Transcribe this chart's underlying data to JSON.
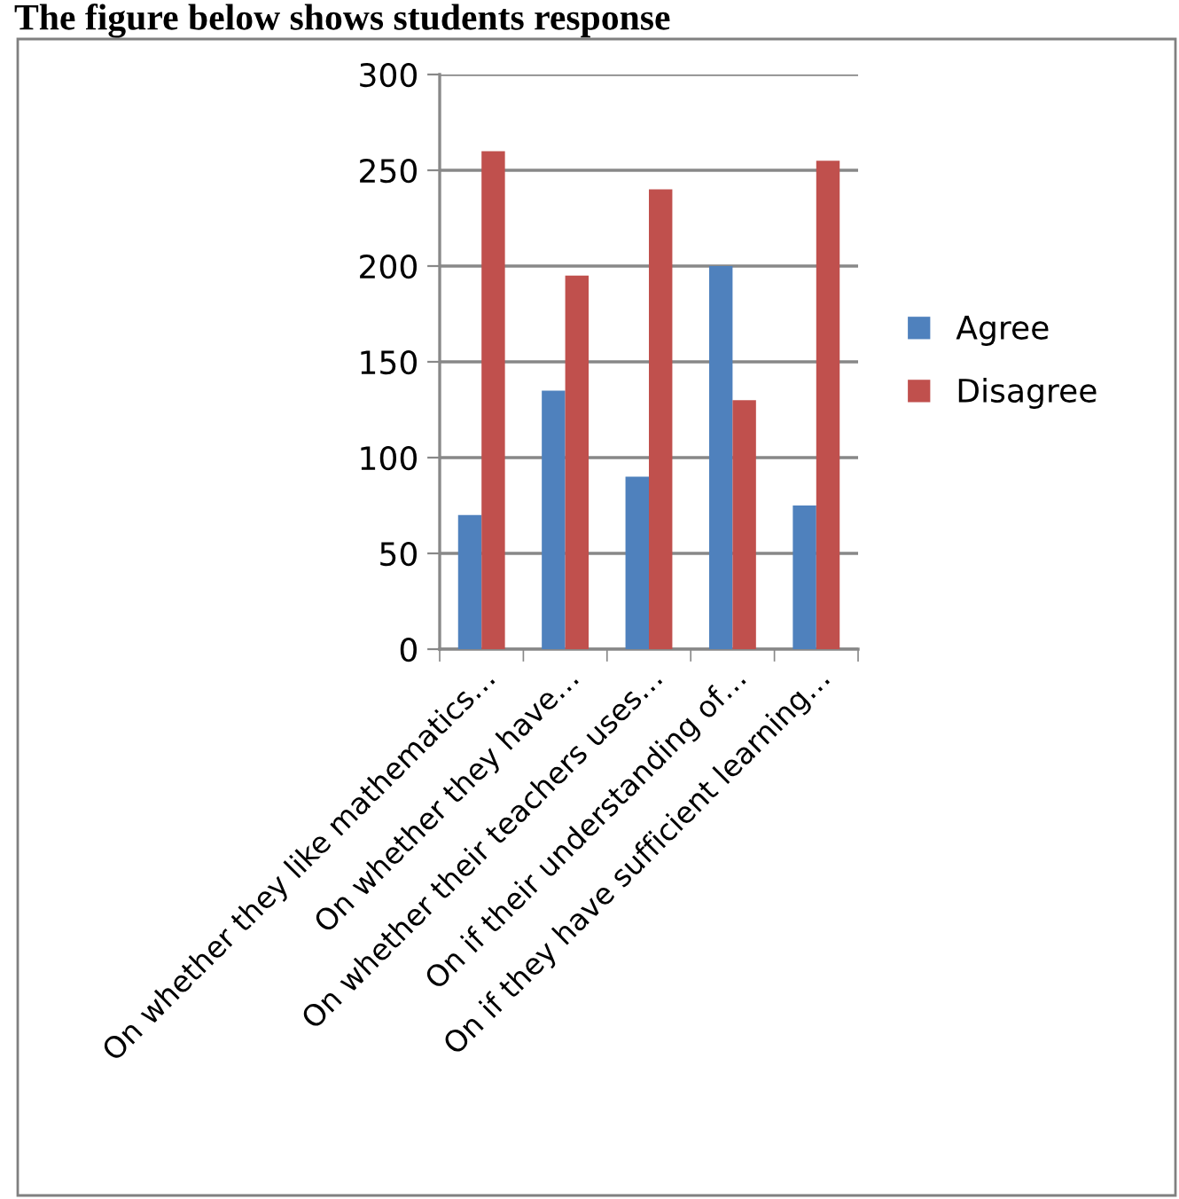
{
  "chart_data": {
    "type": "bar",
    "title": "The figure below shows students response",
    "categories": [
      "On whether they like mathematics…",
      "On whether they have…",
      "On whether their teachers uses…",
      "On if their understanding of…",
      "On if they have sufficient learning…"
    ],
    "series": [
      {
        "name": "Agree",
        "color": "#4f81bd",
        "values": [
          70,
          135,
          90,
          200,
          75
        ]
      },
      {
        "name": "Disagree",
        "color": "#c0504d",
        "values": [
          260,
          195,
          240,
          130,
          255
        ]
      }
    ],
    "ylim": [
      0,
      300
    ],
    "yticks": [
      0,
      50,
      100,
      150,
      200,
      250,
      300
    ],
    "grid": "y",
    "legend": "right"
  }
}
